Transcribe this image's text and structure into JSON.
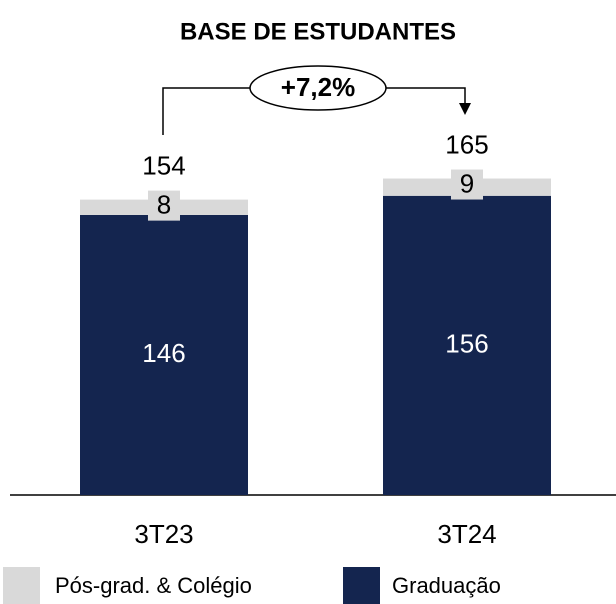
{
  "chart_data": {
    "type": "stacked_bar",
    "title": "BASE DE ESTUDANTES",
    "categories": [
      "3T23",
      "3T24"
    ],
    "series": [
      {
        "name": "Graduação",
        "color": "#14254f",
        "values": [
          146,
          156
        ]
      },
      {
        "name": "Pós-grad. & Colégio",
        "color": "#d9d9d9",
        "values": [
          8,
          9
        ]
      }
    ],
    "totals": [
      154,
      165
    ],
    "annotation": "+7,2%"
  }
}
